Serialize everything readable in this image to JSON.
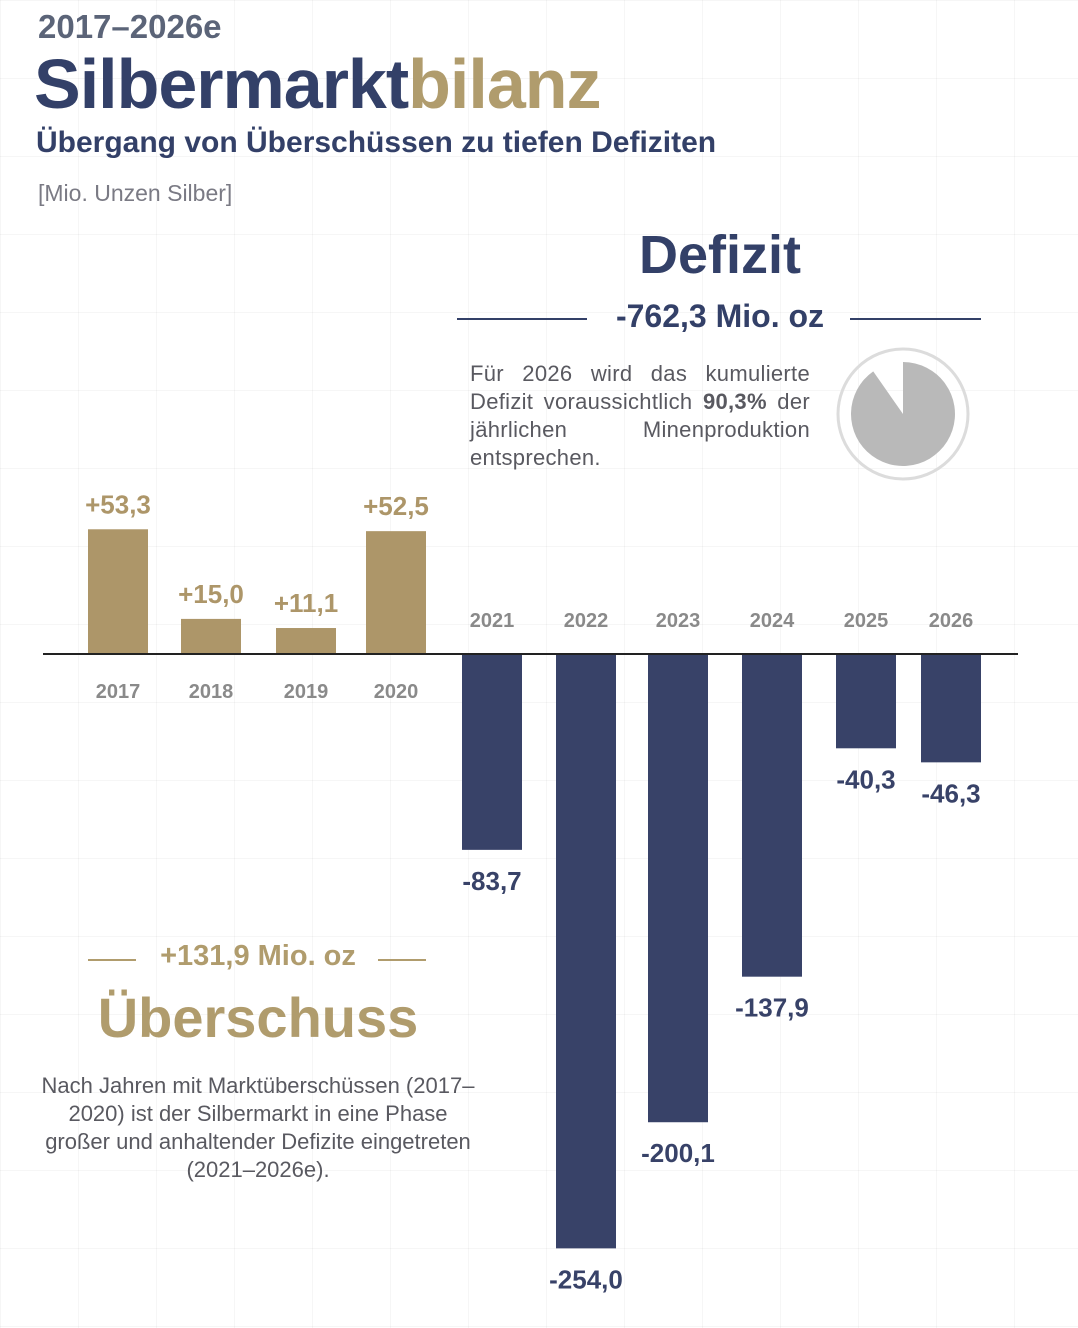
{
  "header": {
    "years": "2017–2026e",
    "title_part1": "Silbermarkt",
    "title_part2": "bilanz",
    "subtitle": "Übergang von Überschüssen zu tiefen Defiziten",
    "unit": "[Mio. Unzen Silber]"
  },
  "deficit": {
    "heading": "Defizit",
    "total": "-762,3 Mio. oz",
    "note_prefix": "Für 2026 wird das kumulierte Defizit voraussichtlich",
    "note_value": "90,3%",
    "note_suffix": "der jährlichen Minenproduktion entsprechen.",
    "pie_share": 0.903
  },
  "surplus": {
    "total": "+131,9 Mio. oz",
    "heading": "Überschuss",
    "note": "Nach Jahren mit Marktüberschüssen (2017–2020) ist der Silbermarkt in eine Phase großer und anhaltender Defizite eingetreten (2021–2026e)."
  },
  "colors": {
    "surplus": "#ad9669",
    "deficit": "#384268",
    "axis": "#222222",
    "tick": "#8a8a8a",
    "pie": "#b9b9b9",
    "pie_ring": "#dcdcdc"
  },
  "chart_data": {
    "type": "bar",
    "categories": [
      "2017",
      "2018",
      "2019",
      "2020",
      "2021",
      "2022",
      "2023",
      "2024",
      "2025",
      "2026"
    ],
    "values": [
      53.3,
      15.0,
      11.1,
      52.5,
      -83.7,
      -254.0,
      -200.1,
      -137.9,
      -40.3,
      -46.3
    ],
    "value_labels": [
      "+53,3",
      "+15,0",
      "+11,1",
      "+52,5",
      "-83,7",
      "-254,0",
      "-200,1",
      "-137,9",
      "-40,3",
      "-46,3"
    ],
    "title": "Silbermarktbilanz",
    "ylabel": "[Mio. Unzen Silber]",
    "ylim": [
      -254.0,
      53.3
    ],
    "grid": true
  }
}
